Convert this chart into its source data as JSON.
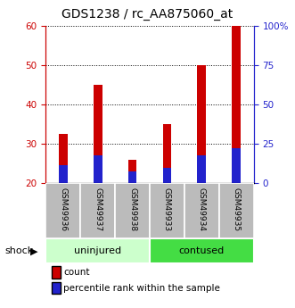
{
  "title": "GDS1238 / rc_AA875060_at",
  "samples": [
    "GSM49936",
    "GSM49937",
    "GSM49938",
    "GSM49933",
    "GSM49934",
    "GSM49935"
  ],
  "red_values": [
    32.5,
    45.0,
    26.0,
    35.0,
    50.0,
    60.0
  ],
  "blue_values": [
    24.5,
    27.0,
    23.0,
    24.0,
    27.0,
    29.0
  ],
  "baseline": 20,
  "ylim_left": [
    20,
    60
  ],
  "ylim_right": [
    0,
    100
  ],
  "yticks_left": [
    20,
    30,
    40,
    50,
    60
  ],
  "yticks_right": [
    0,
    25,
    50,
    75,
    100
  ],
  "ytick_labels_right": [
    "0",
    "25",
    "50",
    "75",
    "100%"
  ],
  "bar_color_red": "#cc0000",
  "bar_color_blue": "#2222cc",
  "uninjured_color": "#ccffcc",
  "contused_color": "#44dd44",
  "sample_bg_color": "#bbbbbb",
  "bar_width": 0.25,
  "legend_count": "count",
  "legend_pct": "percentile rank within the sample",
  "shock_label": "shock",
  "title_fontsize": 10,
  "tick_fontsize": 7.5,
  "label_fontsize": 8
}
